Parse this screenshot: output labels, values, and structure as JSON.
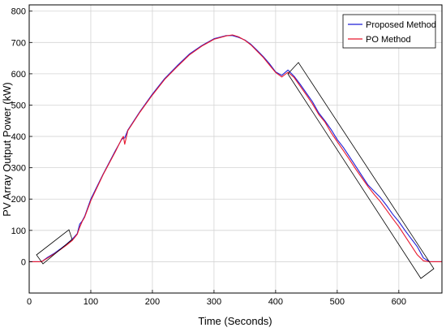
{
  "chart_data": {
    "type": "line",
    "xlabel": "Time (Seconds)",
    "ylabel": "PV Array Output Power (kW)",
    "xlim": [
      0,
      670
    ],
    "ylim": [
      -100,
      820
    ],
    "xticks": [
      0,
      100,
      200,
      300,
      400,
      500,
      600
    ],
    "yticks": [
      0,
      100,
      200,
      300,
      400,
      500,
      600,
      700,
      800
    ],
    "grid": true,
    "legend_position": "top-right",
    "series": [
      {
        "name": "Proposed Method",
        "color": "#1f1fd6",
        "x": [
          0,
          20,
          30,
          40,
          50,
          60,
          70,
          78,
          82,
          86,
          90,
          100,
          120,
          140,
          150,
          153,
          155,
          160,
          180,
          200,
          220,
          240,
          260,
          280,
          300,
          320,
          330,
          340,
          350,
          360,
          370,
          380,
          390,
          400,
          410,
          420,
          430,
          440,
          450,
          460,
          470,
          480,
          490,
          500,
          510,
          520,
          530,
          540,
          550,
          560,
          570,
          580,
          590,
          600,
          610,
          620,
          630,
          640,
          650,
          670
        ],
        "y": [
          0,
          0,
          14,
          26,
          40,
          55,
          72,
          90,
          120,
          130,
          145,
          200,
          280,
          355,
          390,
          395,
          395,
          420,
          480,
          535,
          585,
          625,
          663,
          690,
          712,
          722,
          722,
          716,
          708,
          694,
          675,
          655,
          632,
          606,
          595,
          612,
          592,
          566,
          538,
          510,
          475,
          450,
          422,
          390,
          365,
          335,
          305,
          275,
          245,
          225,
          205,
          180,
          152,
          128,
          100,
          74,
          48,
          12,
          0,
          0
        ]
      },
      {
        "name": "PO Method",
        "color": "#e8182e",
        "x": [
          0,
          20,
          30,
          40,
          50,
          60,
          70,
          78,
          82,
          86,
          90,
          100,
          120,
          140,
          150,
          153,
          155,
          160,
          180,
          200,
          220,
          240,
          260,
          280,
          300,
          320,
          330,
          340,
          350,
          360,
          370,
          380,
          390,
          400,
          410,
          420,
          430,
          440,
          450,
          460,
          470,
          480,
          490,
          500,
          510,
          520,
          530,
          540,
          550,
          560,
          570,
          580,
          590,
          600,
          610,
          620,
          630,
          640,
          650,
          670
        ],
        "y": [
          0,
          0,
          12,
          24,
          38,
          52,
          68,
          88,
          110,
          128,
          142,
          195,
          278,
          352,
          392,
          400,
          375,
          418,
          478,
          532,
          582,
          622,
          660,
          688,
          710,
          721,
          724,
          718,
          707,
          692,
          672,
          652,
          628,
          604,
          590,
          605,
          588,
          560,
          532,
          503,
          470,
          446,
          412,
          383,
          355,
          326,
          296,
          268,
          240,
          215,
          192,
          165,
          138,
          112,
          82,
          52,
          22,
          3,
          0,
          0
        ]
      }
    ]
  }
}
